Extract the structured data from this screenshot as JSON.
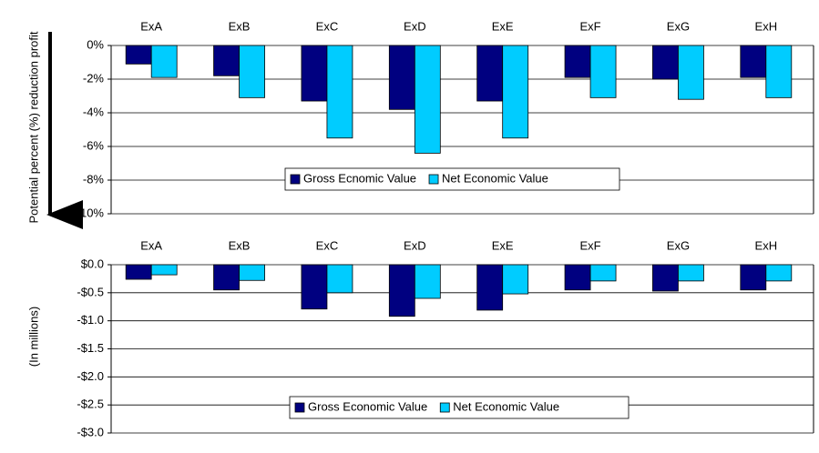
{
  "chart_data": [
    {
      "type": "bar",
      "y_label": "Potential percent (%) reduction profit",
      "categories": [
        "ExA",
        "ExB",
        "ExC",
        "ExD",
        "ExE",
        "ExF",
        "ExG",
        "ExH"
      ],
      "series": [
        {
          "name": "Gross Ecnomic Value",
          "color": "#000080",
          "values": [
            -1.1,
            -1.8,
            -3.3,
            -3.8,
            -3.3,
            -1.9,
            -2.0,
            -1.9
          ]
        },
        {
          "name": "Net Economic Value",
          "color": "#00CCFF",
          "values": [
            -1.9,
            -3.1,
            -5.5,
            -6.4,
            -5.5,
            -3.1,
            -3.2,
            -3.1
          ]
        }
      ],
      "ylim": [
        -10,
        0
      ],
      "yticks": [
        {
          "value": 0,
          "label": "0%"
        },
        {
          "value": -2,
          "label": "-2%"
        },
        {
          "value": -4,
          "label": "-4%"
        },
        {
          "value": -6,
          "label": "-6%"
        },
        {
          "value": -8,
          "label": "-8%"
        },
        {
          "value": -10,
          "label": "-10%"
        }
      ],
      "grid": true
    },
    {
      "type": "bar",
      "y_label": "(In millions)",
      "categories": [
        "ExA",
        "ExB",
        "ExC",
        "ExD",
        "ExE",
        "ExF",
        "ExG",
        "ExH"
      ],
      "series": [
        {
          "name": "Gross Economic Value",
          "color": "#000080",
          "values": [
            -0.26,
            -0.45,
            -0.79,
            -0.92,
            -0.81,
            -0.45,
            -0.47,
            -0.45
          ]
        },
        {
          "name": "Net Economic Value",
          "color": "#00CCFF",
          "values": [
            -0.18,
            -0.28,
            -0.5,
            -0.6,
            -0.52,
            -0.29,
            -0.29,
            -0.29
          ]
        }
      ],
      "ylim": [
        -3,
        0
      ],
      "yticks": [
        {
          "value": 0,
          "label": "$0.0"
        },
        {
          "value": -0.5,
          "label": "-$0.5"
        },
        {
          "value": -1,
          "label": "-$1.0"
        },
        {
          "value": -1.5,
          "label": "-$1.5"
        },
        {
          "value": -2,
          "label": "-$2.0"
        },
        {
          "value": -2.5,
          "label": "-$2.5"
        },
        {
          "value": -3,
          "label": "-$3.0"
        }
      ],
      "grid": true
    }
  ]
}
